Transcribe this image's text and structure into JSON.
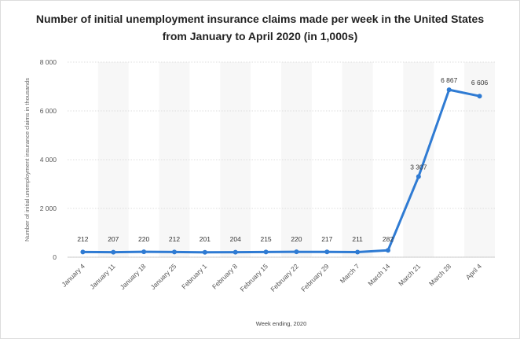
{
  "chart_data": {
    "type": "line",
    "title_line1": "Number of initial unemployment insurance claims made per week in the United States",
    "title_line2": "from January to April 2020 (in 1,000s)",
    "xlabel": "Week ending, 2020",
    "ylabel": "Number of initial unemployment insurance claims in thousands",
    "ylim": [
      0,
      8000
    ],
    "yticks": [
      0,
      2000,
      4000,
      6000,
      8000
    ],
    "ytick_labels": [
      "0",
      "2 000",
      "4 000",
      "6 000",
      "8 000"
    ],
    "categories": [
      "January 4",
      "January 11",
      "January 18",
      "January 25",
      "February 1",
      "February 8",
      "February 15",
      "February 22",
      "February 29",
      "March 7",
      "March 14",
      "March 21",
      "March 28",
      "April 4"
    ],
    "values": [
      212,
      207,
      220,
      212,
      201,
      204,
      215,
      220,
      217,
      211,
      282,
      3307,
      6867,
      6606
    ],
    "value_labels": [
      "212",
      "207",
      "220",
      "212",
      "201",
      "204",
      "215",
      "220",
      "217",
      "211",
      "282",
      "3 307",
      "6 867",
      "6 606"
    ],
    "line_color": "#2f7bd3",
    "band_color": "#f7f7f7",
    "grid": true
  }
}
